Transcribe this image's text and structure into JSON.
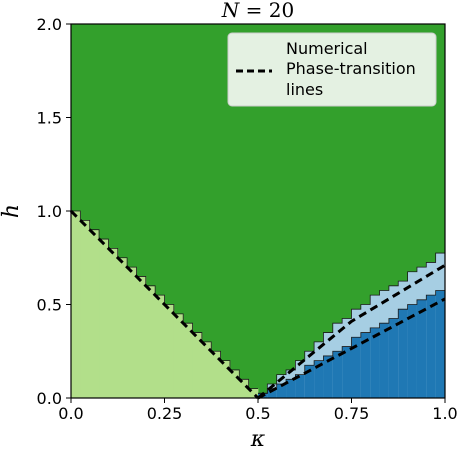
{
  "chart_data": {
    "type": "heatmap",
    "title": "N = 20",
    "xlabel": "κ",
    "ylabel": "h",
    "xlim": [
      0,
      1
    ],
    "ylim": [
      0,
      2
    ],
    "xticks": [
      "0.0",
      "0.25",
      "0.5",
      "0.75",
      "1.0"
    ],
    "xtick_values": [
      0,
      0.25,
      0.5,
      0.75,
      1.0
    ],
    "yticks": [
      "0.0",
      "0.5",
      "1.0",
      "1.5",
      "2.0"
    ],
    "ytick_values": [
      0,
      0.5,
      1.0,
      1.5,
      2.0
    ],
    "grid": false,
    "legend_position": "top-right",
    "legend": [
      {
        "label": "Numerical",
        "kind": "none"
      },
      {
        "label": "Phase-transition lines",
        "kind": "dashed-line"
      }
    ],
    "colors": {
      "paramagnetic": "#33a02c",
      "left_phase": "#b2df8a",
      "middle_phase": "#a6cee3",
      "right_phase": "#1f78b4",
      "lines": "#000000"
    },
    "grid_resolution": {
      "nx": 40,
      "ny": 80
    },
    "regions": [
      {
        "name": "left_phase",
        "boundary_x": [
          0,
          0.5
        ],
        "boundary_h": [
          1.0,
          0.0
        ]
      },
      {
        "name": "upper_boundary",
        "boundary_x": [
          0.5,
          0.75,
          1.0
        ],
        "boundary_h": [
          0.0,
          0.46,
          0.78
        ]
      },
      {
        "name": "lower_boundary",
        "boundary_x": [
          0.5,
          1.0
        ],
        "boundary_h": [
          0.0,
          0.6
        ]
      }
    ],
    "transition_lines": [
      {
        "x": [
          0,
          0.5
        ],
        "y": [
          1.0,
          0.0
        ]
      },
      {
        "x": [
          0.5,
          0.75,
          1.0
        ],
        "y": [
          0.0,
          0.41,
          0.71
        ]
      },
      {
        "x": [
          0.5,
          1.0
        ],
        "y": [
          0.0,
          0.53
        ]
      }
    ]
  }
}
